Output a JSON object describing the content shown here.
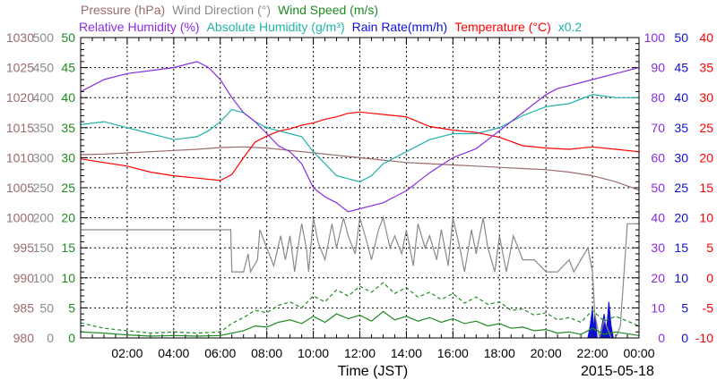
{
  "chart_data": {
    "type": "line",
    "header": {
      "row1": [
        {
          "text": "Pressure (hPa)",
          "color": "#9b6b6b"
        },
        {
          "text": "Wind Direction (°)",
          "color": "#8a8a8a"
        },
        {
          "text": "Wind Speed (m/s)",
          "color": "#1f8a1f"
        }
      ],
      "row2": [
        {
          "text": "Relative Humidity (%)",
          "color": "#8a2be2"
        },
        {
          "text": "Absolute Humidity (g/m³)",
          "color": "#20b2aa"
        },
        {
          "text": "Rain Rate(mm/h)",
          "color": "#1010d0"
        },
        {
          "text": "Temperature (°C)",
          "color": "#ff0000"
        },
        {
          "text": "x0.2",
          "color": "#20b2aa"
        }
      ]
    },
    "xlabel": "Time (JST)",
    "date": "2015-05-18",
    "x_ticks": [
      "02:00",
      "04:00",
      "06:00",
      "08:00",
      "10:00",
      "12:00",
      "14:00",
      "16:00",
      "18:00",
      "20:00",
      "22:00",
      "00:00"
    ],
    "x_range_hours": [
      0,
      24
    ],
    "axes": {
      "pressure": {
        "color": "#9b6b6b",
        "ticks": [
          "1030",
          "1025",
          "1020",
          "1015",
          "1010",
          "1005",
          "1000",
          "995",
          "990",
          "985",
          "980"
        ],
        "range": [
          980,
          1030
        ]
      },
      "wind_direction": {
        "color": "#8a8a8a",
        "ticks": [
          "500",
          "450",
          "400",
          "350",
          "300",
          "250",
          "200",
          "150",
          "100",
          "50",
          "0"
        ],
        "range": [
          0,
          500
        ]
      },
      "wind_speed": {
        "color": "#1f8a1f",
        "ticks": [
          "50",
          "45",
          "40",
          "35",
          "30",
          "25",
          "20",
          "15",
          "10",
          "5",
          "0"
        ],
        "range": [
          0,
          50
        ]
      },
      "relative_humidity": {
        "color": "#8a2be2",
        "ticks": [
          "100",
          "90",
          "80",
          "70",
          "60",
          "50",
          "40",
          "30",
          "20",
          "10",
          "0"
        ],
        "range": [
          0,
          100
        ]
      },
      "rain_rate": {
        "color": "#1010d0",
        "ticks": [
          "50",
          "45",
          "40",
          "35",
          "30",
          "25",
          "20",
          "15",
          "10",
          "5",
          "0"
        ],
        "range": [
          0,
          50
        ]
      },
      "temperature": {
        "color": "#ff0000",
        "ticks": [
          "40",
          "35",
          "30",
          "25",
          "20",
          "15",
          "10",
          "5",
          "0",
          "-5",
          "-10"
        ],
        "range": [
          -10,
          40
        ]
      }
    },
    "series": [
      {
        "name": "Pressure (hPa)",
        "axis": "pressure",
        "color": "#9b6b6b",
        "x": [
          0,
          1,
          2,
          3,
          4,
          5,
          6,
          7,
          8,
          9,
          10,
          11,
          12,
          13,
          14,
          15,
          16,
          17,
          18,
          19,
          20,
          21,
          22,
          23,
          24
        ],
        "y": [
          1010.5,
          1010.6,
          1010.8,
          1011,
          1011.2,
          1011.4,
          1011.7,
          1011.8,
          1011.6,
          1011.2,
          1010.8,
          1010.4,
          1010,
          1009.6,
          1009.2,
          1009,
          1008.8,
          1008.6,
          1008.4,
          1008.2,
          1008.0,
          1007.6,
          1007.0,
          1006.0,
          1004.6
        ]
      },
      {
        "name": "Relative Humidity (%)",
        "axis": "relative_humidity",
        "color": "#8a2be2",
        "x": [
          0,
          0.5,
          1,
          2,
          3,
          4,
          5,
          5.5,
          6,
          6.5,
          7,
          7.5,
          8,
          8.5,
          9,
          9.5,
          10,
          10.5,
          11,
          11.5,
          12,
          12.5,
          13,
          13.5,
          14,
          14.5,
          15,
          16,
          17,
          18,
          19,
          20,
          20.5,
          21,
          22,
          23,
          24
        ],
        "y": [
          82,
          84,
          86,
          88,
          89,
          90,
          92,
          90,
          86,
          80,
          75,
          72,
          68,
          64,
          62,
          58,
          50,
          47,
          45,
          42,
          43,
          44,
          45,
          47,
          49,
          52,
          55,
          60,
          63,
          69,
          75,
          81,
          83,
          84,
          86,
          88,
          90
        ]
      },
      {
        "name": "Absolute Humidity",
        "axis": "relative_humidity",
        "color": "#20b2aa",
        "x": [
          0,
          1,
          2,
          3,
          4,
          5,
          5.5,
          6,
          6.5,
          7,
          7.5,
          8,
          8.5,
          9,
          9.5,
          10,
          10.5,
          11,
          11.5,
          12,
          12.5,
          13,
          14,
          15,
          16,
          17,
          18,
          19,
          20,
          21,
          22,
          23,
          24
        ],
        "y": [
          71,
          72,
          70,
          68,
          66,
          67,
          69,
          72,
          76,
          75,
          72,
          70,
          69,
          68,
          67,
          62,
          58,
          54,
          53,
          52,
          54,
          58,
          62,
          66,
          68,
          68,
          70,
          74,
          77,
          78,
          81,
          80,
          80
        ]
      },
      {
        "name": "Temperature (°C)",
        "axis": "temperature",
        "color": "#ff0000",
        "x": [
          0,
          1,
          2,
          3,
          4,
          5,
          6,
          6.5,
          7,
          7.5,
          8,
          8.5,
          9,
          9.5,
          10,
          10.5,
          11,
          11.5,
          12,
          12.5,
          13,
          13.5,
          14,
          15,
          16,
          17,
          18,
          19,
          20,
          21,
          22,
          23,
          24
        ],
        "y": [
          19.8,
          19.2,
          18.6,
          17.6,
          17,
          16.6,
          16.2,
          17.2,
          20,
          22.6,
          23.6,
          24.4,
          24.8,
          25.4,
          25.8,
          26.4,
          26.8,
          27.4,
          27.6,
          27.4,
          27.2,
          27,
          26.8,
          25.2,
          24.6,
          24.2,
          23.4,
          22,
          21.6,
          21.4,
          21.8,
          21.4,
          21.0
        ]
      },
      {
        "name": "Wind Direction",
        "axis": "wind_direction",
        "color": "#8a8a8a",
        "x": [
          0,
          6.45,
          6.5,
          7,
          7.2,
          7.3,
          7.6,
          7.7,
          8,
          8.3,
          8.6,
          8.8,
          9,
          9.2,
          9.3,
          9.5,
          9.7,
          9.8,
          10,
          10.2,
          10.5,
          10.8,
          11,
          11.3,
          11.5,
          11.8,
          12,
          12.3,
          12.5,
          12.8,
          13,
          13.3,
          13.5,
          13.8,
          14,
          14.3,
          14.5,
          14.8,
          15,
          15.3,
          15.5,
          15.8,
          16,
          16.3,
          16.5,
          16.8,
          17,
          17.3,
          17.5,
          17.8,
          18,
          18.3,
          18.6,
          19,
          19.5,
          20,
          20.5,
          21,
          21.2,
          21.5,
          21.8,
          22,
          22.1,
          22.3,
          22.5,
          22.8,
          23,
          23.2,
          23.5,
          23.8,
          24
        ],
        "y": [
          180,
          180,
          110,
          110,
          140,
          110,
          130,
          180,
          150,
          120,
          170,
          130,
          170,
          110,
          140,
          190,
          150,
          110,
          200,
          160,
          130,
          190,
          150,
          200,
          170,
          140,
          200,
          160,
          130,
          180,
          200,
          150,
          170,
          140,
          180,
          120,
          190,
          150,
          170,
          130,
          180,
          120,
          200,
          150,
          110,
          180,
          140,
          200,
          150,
          110,
          170,
          110,
          170,
          130,
          130,
          110,
          110,
          130,
          110,
          130,
          150,
          110,
          40,
          0,
          30,
          0,
          0,
          20,
          190,
          190,
          190
        ]
      },
      {
        "name": "Wind Speed (m/s) avg",
        "axis": "wind_speed",
        "color": "#1f8a1f",
        "dash": false,
        "x": [
          0,
          1,
          2,
          3,
          4,
          5,
          6,
          6.5,
          7,
          7.5,
          8,
          8.5,
          9,
          9.5,
          10,
          10.5,
          11,
          11.5,
          12,
          12.5,
          13,
          13.5,
          14,
          14.5,
          15,
          15.5,
          16,
          16.5,
          17,
          17.5,
          18,
          18.5,
          19,
          19.5,
          20,
          20.5,
          21,
          21.5,
          22,
          22.5,
          23,
          24
        ],
        "y": [
          1,
          0.8,
          0.5,
          0.3,
          0.4,
          0.3,
          0.4,
          0.8,
          1.2,
          2,
          1.8,
          2.6,
          3,
          2.4,
          3.6,
          2.6,
          4,
          3.2,
          3.8,
          2.8,
          4.4,
          3,
          3.6,
          2.8,
          3.4,
          2.6,
          3.2,
          2.4,
          2.8,
          2,
          2.4,
          1.6,
          1.8,
          1.2,
          1.4,
          0.8,
          1,
          0.6,
          1.6,
          0.6,
          1,
          0.4
        ]
      },
      {
        "name": "Wind Speed (m/s) gust",
        "axis": "wind_speed",
        "color": "#1f8a1f",
        "dash": true,
        "x": [
          0,
          1,
          2,
          3,
          4,
          5,
          6,
          6.5,
          7,
          7.5,
          8,
          8.5,
          9,
          9.5,
          10,
          10.5,
          11,
          11.5,
          12,
          12.5,
          13,
          13.5,
          14,
          14.5,
          15,
          15.5,
          16,
          16.5,
          17,
          17.5,
          18,
          18.5,
          19,
          19.5,
          20,
          20.5,
          21,
          21.5,
          22,
          22.5,
          23,
          24
        ],
        "y": [
          2.5,
          1.6,
          1.2,
          0.8,
          1,
          0.8,
          1,
          2.4,
          3.4,
          4.6,
          4.2,
          5.4,
          6,
          5,
          7,
          6,
          8,
          7,
          8.6,
          7.6,
          9.2,
          7.4,
          8.4,
          6.8,
          7.6,
          6.4,
          7.4,
          5.8,
          6.8,
          5.6,
          6,
          4.6,
          4.8,
          3.8,
          4.2,
          3,
          3.4,
          2.6,
          4.6,
          2.8,
          3.6,
          2
        ]
      },
      {
        "name": "Rain Rate(mm/h)",
        "axis": "rain_rate",
        "color": "#1010d0",
        "fill": true,
        "x": [
          0,
          21.8,
          21.9,
          22.0,
          22.05,
          22.1,
          22.2,
          22.3,
          22.4,
          22.5,
          22.6,
          22.7,
          22.8,
          22.9,
          23.0,
          24
        ],
        "y": [
          0,
          0,
          2,
          5,
          1,
          4,
          0,
          0,
          2,
          4,
          1,
          6,
          2,
          0,
          0,
          0
        ]
      }
    ]
  }
}
